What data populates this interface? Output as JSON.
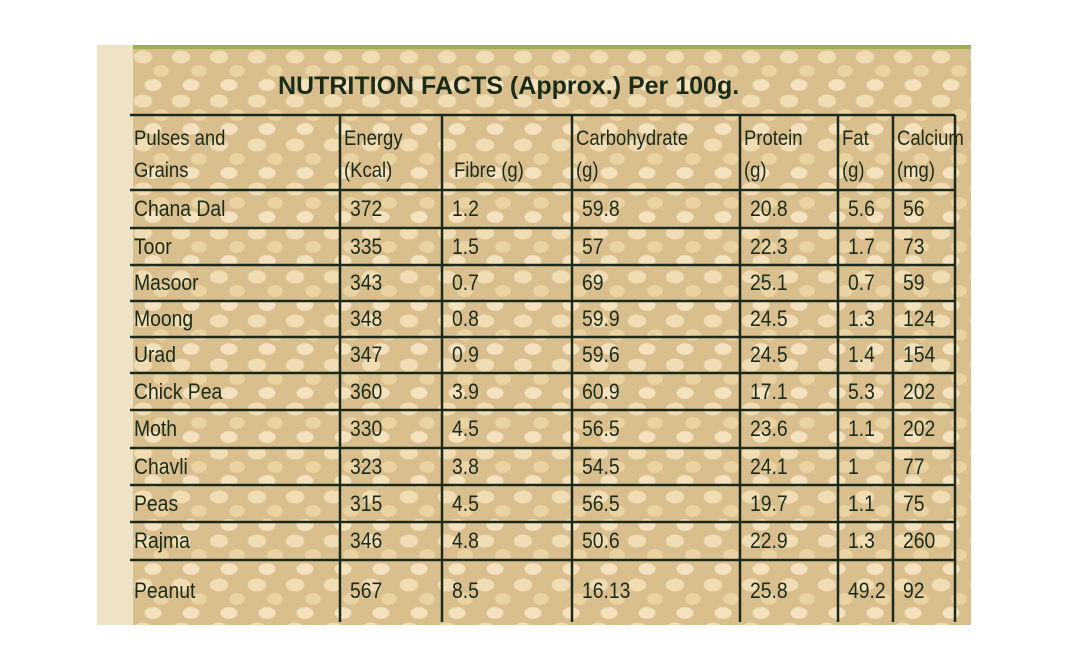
{
  "title": "NUTRITION FACTS (Approx.) Per 100g.",
  "table": {
    "header": [
      [
        "Pulses and",
        "Grains"
      ],
      [
        "Energy",
        "(Kcal)"
      ],
      [
        "Fibre (g)"
      ],
      [
        "Carbohydrate",
        "(g)"
      ],
      [
        "Protein",
        "(g)"
      ],
      [
        "Fat",
        "(g)"
      ],
      [
        "Calcium",
        "(mg)"
      ]
    ],
    "rows": [
      [
        "Chana Dal",
        372,
        1.2,
        59.8,
        20.8,
        5.6,
        56
      ],
      [
        "Toor",
        335,
        1.5,
        57,
        22.3,
        1.7,
        73
      ],
      [
        "Masoor",
        343,
        0.7,
        69,
        25.1,
        0.7,
        59
      ],
      [
        "Moong",
        348,
        0.8,
        59.9,
        24.5,
        1.3,
        124
      ],
      [
        "Urad",
        347,
        0.9,
        59.6,
        24.5,
        1.4,
        154
      ],
      [
        "Chick Pea",
        360,
        3.9,
        60.9,
        17.1,
        5.3,
        202
      ],
      [
        "Moth",
        330,
        4.5,
        56.5,
        23.6,
        1.1,
        202
      ],
      [
        "Chavli",
        323,
        3.8,
        54.5,
        24.1,
        1,
        77
      ],
      [
        "Peas",
        315,
        4.5,
        56.5,
        19.7,
        1.1,
        75
      ],
      [
        "Rajma",
        346,
        4.8,
        50.6,
        22.9,
        1.3,
        260
      ],
      [
        "Peanut",
        567,
        8.5,
        16.13,
        25.8,
        49.2,
        92
      ]
    ]
  }
}
